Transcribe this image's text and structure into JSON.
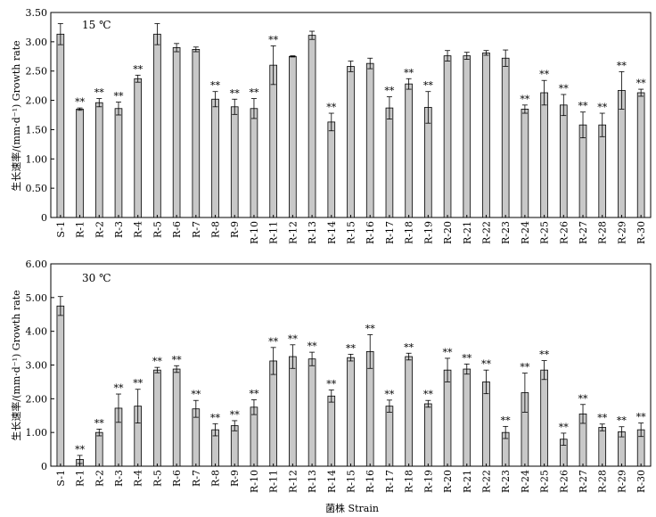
{
  "chart_data": [
    {
      "type": "bar",
      "panel_label": "15 ℃",
      "ylabel": "生长速率/(mm·d⁻¹) Growth rate",
      "ylim": [
        0,
        3.5
      ],
      "yticks": [
        "0",
        "0.50",
        "1.00",
        "1.50",
        "2.00",
        "2.50",
        "3.00",
        "3.50"
      ],
      "categories": [
        "S-1",
        "R-1",
        "R-2",
        "R-3",
        "R-4",
        "R-5",
        "R-6",
        "R-7",
        "R-8",
        "R-9",
        "R-10",
        "R-11",
        "R-12",
        "R-13",
        "R-14",
        "R-15",
        "R-16",
        "R-17",
        "R-18",
        "R-19",
        "R-20",
        "R-21",
        "R-22",
        "R-23",
        "R-24",
        "R-25",
        "R-26",
        "R-27",
        "R-28",
        "R-29",
        "R-30"
      ],
      "values": [
        3.13,
        1.85,
        1.96,
        1.86,
        2.37,
        3.13,
        2.9,
        2.87,
        2.02,
        1.89,
        1.86,
        2.6,
        2.75,
        3.11,
        1.63,
        2.58,
        2.63,
        1.87,
        2.28,
        1.88,
        2.76,
        2.76,
        2.81,
        2.72,
        1.85,
        2.13,
        1.92,
        1.58,
        1.58,
        2.17,
        2.13
      ],
      "errors": [
        0.18,
        0.02,
        0.07,
        0.11,
        0.06,
        0.18,
        0.07,
        0.04,
        0.13,
        0.13,
        0.17,
        0.33,
        0.01,
        0.07,
        0.15,
        0.09,
        0.09,
        0.19,
        0.09,
        0.27,
        0.09,
        0.06,
        0.04,
        0.14,
        0.07,
        0.21,
        0.18,
        0.22,
        0.2,
        0.32,
        0.06
      ],
      "significance": [
        "",
        "**",
        "**",
        "**",
        "**",
        "",
        "",
        "",
        "**",
        "**",
        "**",
        "**",
        "",
        "",
        "**",
        "",
        "",
        "**",
        "**",
        "**",
        "",
        "",
        "",
        "",
        "**",
        "**",
        "**",
        "**",
        "**",
        "**",
        "**"
      ]
    },
    {
      "type": "bar",
      "panel_label": "30 ℃",
      "ylabel": "生长速率/(mm·d⁻¹) Growth rate",
      "xlabel": "菌株 Strain",
      "ylim": [
        0,
        6
      ],
      "yticks": [
        "0",
        "1.00",
        "2.00",
        "3.00",
        "4.00",
        "5.00",
        "6.00"
      ],
      "categories": [
        "S-1",
        "R-1",
        "R-2",
        "R-3",
        "R-4",
        "R-5",
        "R-6",
        "R-7",
        "R-8",
        "R-9",
        "R-10",
        "R-11",
        "R-12",
        "R-13",
        "R-14",
        "R-15",
        "R-16",
        "R-17",
        "R-18",
        "R-19",
        "R-20",
        "R-21",
        "R-22",
        "R-23",
        "R-24",
        "R-25",
        "R-26",
        "R-27",
        "R-28",
        "R-29",
        "R-30"
      ],
      "values": [
        4.75,
        0.2,
        1.0,
        1.72,
        1.78,
        2.85,
        2.88,
        1.7,
        1.08,
        1.2,
        1.75,
        3.12,
        3.25,
        3.18,
        2.08,
        3.22,
        3.4,
        1.78,
        3.25,
        1.85,
        2.85,
        2.88,
        2.5,
        1.0,
        2.18,
        2.85,
        0.8,
        1.55,
        1.15,
        1.02,
        1.08
      ],
      "errors": [
        0.28,
        0.12,
        0.1,
        0.42,
        0.5,
        0.08,
        0.1,
        0.25,
        0.18,
        0.15,
        0.22,
        0.4,
        0.35,
        0.2,
        0.18,
        0.1,
        0.5,
        0.18,
        0.1,
        0.1,
        0.35,
        0.15,
        0.35,
        0.18,
        0.58,
        0.28,
        0.18,
        0.28,
        0.1,
        0.15,
        0.2
      ],
      "significance": [
        "",
        "**",
        "**",
        "**",
        "**",
        "**",
        "**",
        "**",
        "**",
        "**",
        "**",
        "**",
        "**",
        "**",
        "**",
        "**",
        "**",
        "**",
        "**",
        "**",
        "**",
        "**",
        "**",
        "**",
        "**",
        "**",
        "**",
        "**",
        "**",
        "**",
        "**"
      ]
    }
  ]
}
